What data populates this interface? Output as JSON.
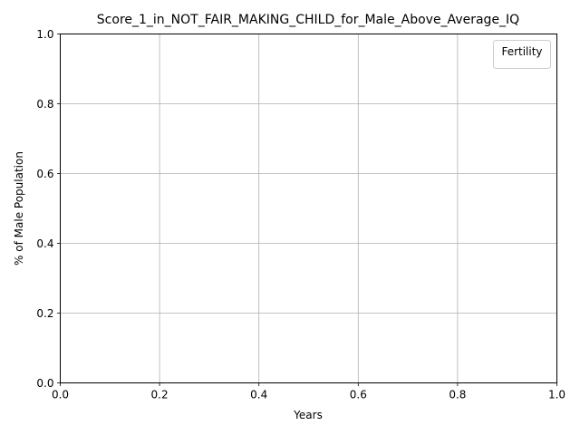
{
  "chart_data": {
    "type": "line",
    "title": "Score_1_in_NOT_FAIR_MAKING_CHILD_for_Male_Above_Average_IQ",
    "xlabel": "Years",
    "ylabel": "% of Male Population",
    "xlim": [
      0.0,
      1.0
    ],
    "ylim": [
      0.0,
      1.0
    ],
    "xticks": [
      "0.0",
      "0.2",
      "0.4",
      "0.6",
      "0.8",
      "1.0"
    ],
    "yticks": [
      "0.0",
      "0.2",
      "0.4",
      "0.6",
      "0.8",
      "1.0"
    ],
    "grid": true,
    "legend": {
      "title": "Fertility",
      "placement": "top-right",
      "entries": []
    },
    "series": []
  }
}
